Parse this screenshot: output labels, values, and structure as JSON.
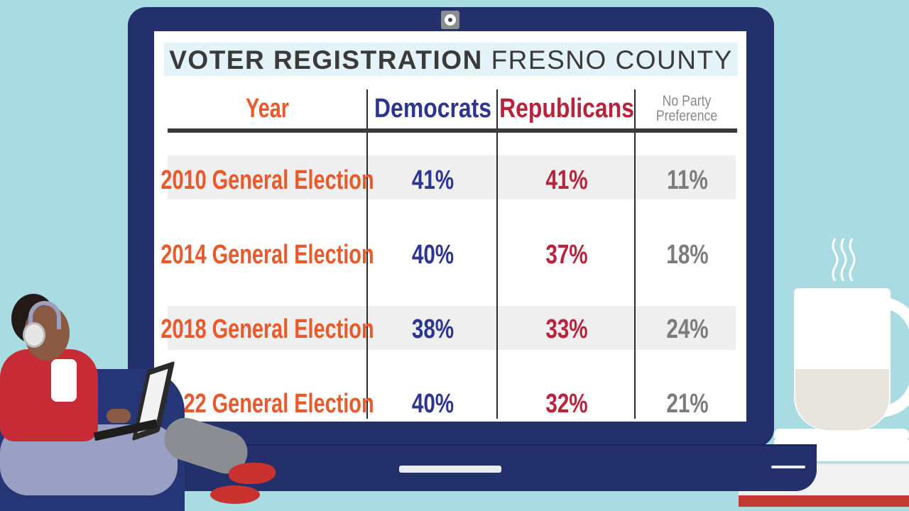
{
  "title": {
    "bold": "VOTER REGISTRATION",
    "light": "FRESNO COUNTY"
  },
  "table": {
    "headers": {
      "year": "Year",
      "democrats": "Democrats",
      "republicans": "Republicans",
      "npp": "No Party Preference"
    },
    "rows": [
      {
        "year": "2010 General Election",
        "democrats": "41%",
        "republicans": "41%",
        "npp": "11%"
      },
      {
        "year": "2014 General Election",
        "democrats": "40%",
        "republicans": "37%",
        "npp": "18%"
      },
      {
        "year": "2018 General Election",
        "democrats": "38%",
        "republicans": "33%",
        "npp": "24%"
      },
      {
        "year": "2022 General Election",
        "democrats": "40%",
        "republicans": "32%",
        "npp": "21%"
      }
    ]
  },
  "colors": {
    "year": "#e85a2b",
    "democrats": "#2c3690",
    "republicans": "#b8223a",
    "npp": "#7c7c7c",
    "laptop": "#23306b",
    "background": "#a9dbe3"
  }
}
